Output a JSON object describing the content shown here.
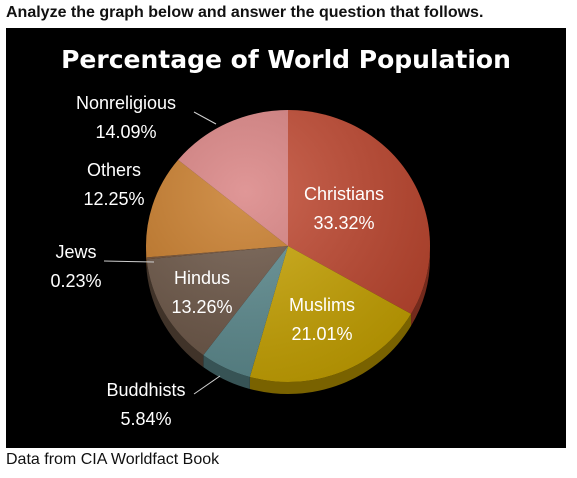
{
  "question": "Analyze the graph below and answer the question that follows.",
  "source": "Data from CIA Worldfact Book",
  "colors": {
    "background": "#000000",
    "Christians": "#c0462e",
    "Muslims": "#c9a400",
    "Buddhists": "#5b8a8e",
    "Hindus": "#6b5545",
    "Jews": "#6f4a2e",
    "Others": "#c87a26",
    "Nonreligious": "#d98080"
  },
  "chart_data": {
    "type": "pie",
    "title": "Percentage of World Population",
    "slices": [
      {
        "label": "Christians",
        "value": 33.32,
        "value_text": "33.32%"
      },
      {
        "label": "Muslims",
        "value": 21.01,
        "value_text": "21.01%"
      },
      {
        "label": "Buddhists",
        "value": 5.84,
        "value_text": "5.84%"
      },
      {
        "label": "Hindus",
        "value": 13.26,
        "value_text": "13.26%"
      },
      {
        "label": "Jews",
        "value": 0.23,
        "value_text": "0.23%"
      },
      {
        "label": "Others",
        "value": 12.25,
        "value_text": "12.25%"
      },
      {
        "label": "Nonreligious",
        "value": 14.09,
        "value_text": "14.09%"
      }
    ],
    "legend": "none"
  }
}
